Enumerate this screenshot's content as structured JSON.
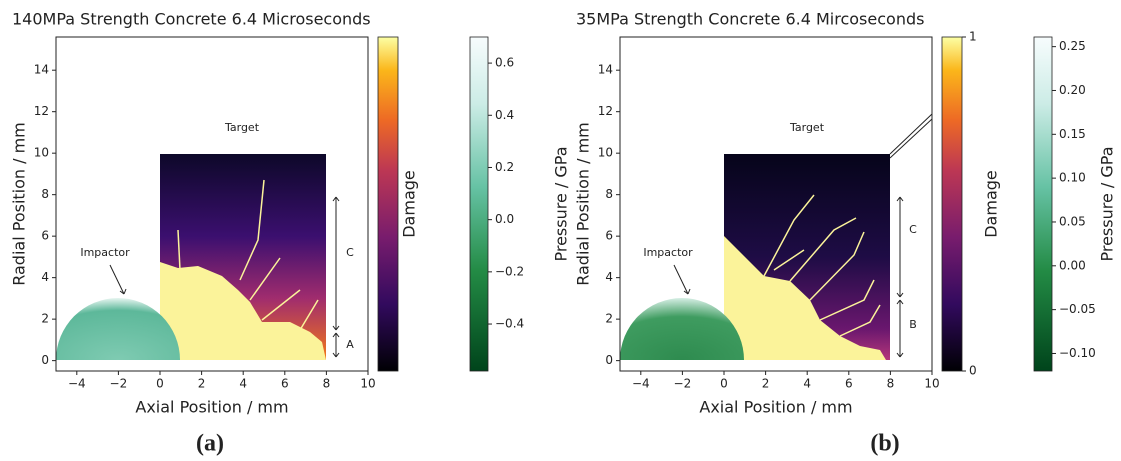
{
  "chart_data": [
    {
      "type": "heatmap",
      "title": "140MPa Strength Concrete 6.4 Microseconds",
      "xlabel": "Axial Position / mm",
      "ylabel": "Radial Position / mm",
      "xlim": [
        -5,
        10
      ],
      "ylim": [
        -0.5,
        15.6
      ],
      "xticks": [
        {
          "value": -4,
          "label": "−4"
        },
        {
          "value": -2,
          "label": "−2"
        },
        0,
        2,
        4,
        6,
        8,
        10
      ],
      "yticks": [
        0,
        2,
        4,
        6,
        8,
        10,
        12,
        14
      ],
      "annotations": [
        "Target",
        "Impactor",
        "C",
        "A"
      ],
      "colorbars": [
        {
          "label": "Damage",
          "lim": [
            0,
            1
          ]
        },
        {
          "label": "Pressure / GPa",
          "lim": [
            -0.58,
            0.7
          ],
          "ticks": [
            0.6,
            0.4,
            0.2,
            {
              "value": 0,
              "label": "0.0"
            },
            {
              "value": -0.2,
              "label": "−0.2"
            },
            {
              "value": -0.4,
              "label": "−0.4"
            }
          ]
        }
      ],
      "caption": "(a)"
    },
    {
      "type": "heatmap",
      "title": "35MPa Strength Concrete 6.4 Mircoseconds",
      "xlabel": "Axial Position / mm",
      "ylabel": "Radial Position / mm",
      "xlim": [
        -5,
        10
      ],
      "ylim": [
        -0.5,
        15.6
      ],
      "xticks": [
        {
          "value": -4,
          "label": "−4"
        },
        {
          "value": -2,
          "label": "−2"
        },
        0,
        2,
        4,
        6,
        8,
        10
      ],
      "yticks": [
        0,
        2,
        4,
        6,
        8,
        10,
        12,
        14
      ],
      "annotations": [
        "Target",
        "Impactor",
        "C",
        "B"
      ],
      "colorbars": [
        {
          "label": "Damage",
          "lim": [
            0,
            1
          ],
          "ticks": [
            0,
            1
          ]
        },
        {
          "label": "Pressure / GPa",
          "lim": [
            -0.12,
            0.261
          ],
          "ticks": [
            0.25,
            {
              "value": 0.2,
              "label": "0.20"
            },
            0.15,
            {
              "value": 0.1,
              "label": "0.10"
            },
            0.05,
            {
              "value": 0,
              "label": "0.00"
            },
            {
              "value": -0.05,
              "label": "−0.05"
            },
            {
              "value": -0.1,
              "label": "−0.10"
            }
          ]
        }
      ],
      "caption": "(b)"
    }
  ]
}
